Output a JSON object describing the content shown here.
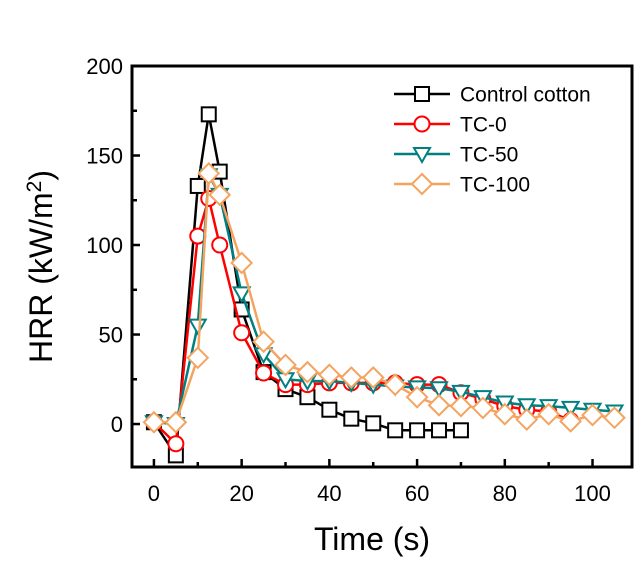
{
  "chart_data": {
    "type": "line",
    "title": "",
    "xlabel": "Time (s)",
    "ylabel_main": "HRR (kW/m",
    "ylabel_sup": "2",
    "ylabel_close": ")",
    "xlim": [
      -5,
      109
    ],
    "ylim": [
      -24,
      200
    ],
    "xticks": [
      0,
      20,
      40,
      60,
      80,
      100
    ],
    "xtick_labels": [
      "0",
      "20",
      "40",
      "60",
      "80",
      "100"
    ],
    "xminor": [
      10,
      30,
      50,
      70,
      90
    ],
    "yticks": [
      0,
      50,
      100,
      150,
      200
    ],
    "ytick_labels": [
      "0",
      "50",
      "100",
      "150",
      "200"
    ],
    "yminor": [
      25,
      75,
      125,
      175
    ],
    "grid": false,
    "legend_position": "top-right",
    "series": [
      {
        "name": "Control cotton",
        "color": "#000000",
        "marker": "square",
        "x": [
          0,
          5,
          10,
          12.5,
          15,
          20,
          25,
          30,
          35,
          40,
          45,
          50,
          55,
          60,
          65,
          70
        ],
        "y": [
          1,
          -17.5,
          133,
          173,
          141,
          64,
          29,
          19.5,
          15,
          8,
          3,
          0.4,
          -3.5,
          -3.5,
          -3.5,
          -3.5
        ]
      },
      {
        "name": "TC-0",
        "color": "#ff0000",
        "marker": "circle",
        "x": [
          0,
          5,
          10,
          12.5,
          15,
          20,
          25,
          30,
          35,
          40,
          45,
          50,
          55,
          60,
          65,
          70,
          75,
          80,
          85,
          90,
          95
        ],
        "y": [
          1,
          -11,
          105,
          126,
          100,
          51,
          28.5,
          22,
          22,
          23,
          23,
          23,
          23,
          22,
          22,
          17.5,
          14,
          10,
          8,
          7,
          2
        ]
      },
      {
        "name": "TC-50",
        "color": "#008080",
        "marker": "triangle-down",
        "x": [
          0,
          5,
          10,
          12.5,
          15,
          20,
          25,
          30,
          35,
          40,
          45,
          50,
          55,
          60,
          65,
          70,
          75,
          80,
          85,
          90,
          95,
          100,
          105
        ],
        "y": [
          1,
          0,
          55,
          139,
          128,
          73,
          39,
          25,
          24,
          24,
          23,
          22,
          21,
          20.5,
          20,
          18,
          15,
          12,
          10.5,
          10,
          9,
          8,
          7
        ]
      },
      {
        "name": "TC-100",
        "color": "#f4a460",
        "marker": "diamond",
        "x": [
          0,
          5,
          10,
          12.5,
          15,
          20,
          25,
          30,
          35,
          40,
          45,
          50,
          55,
          60,
          65,
          70,
          75,
          80,
          85,
          90,
          95,
          100,
          105
        ],
        "y": [
          1,
          1,
          37,
          140,
          128,
          90,
          46,
          33,
          29,
          27.5,
          26,
          26,
          22,
          15,
          10.5,
          10,
          9,
          5.5,
          2.5,
          5.5,
          1.5,
          5,
          3.5
        ]
      }
    ]
  }
}
